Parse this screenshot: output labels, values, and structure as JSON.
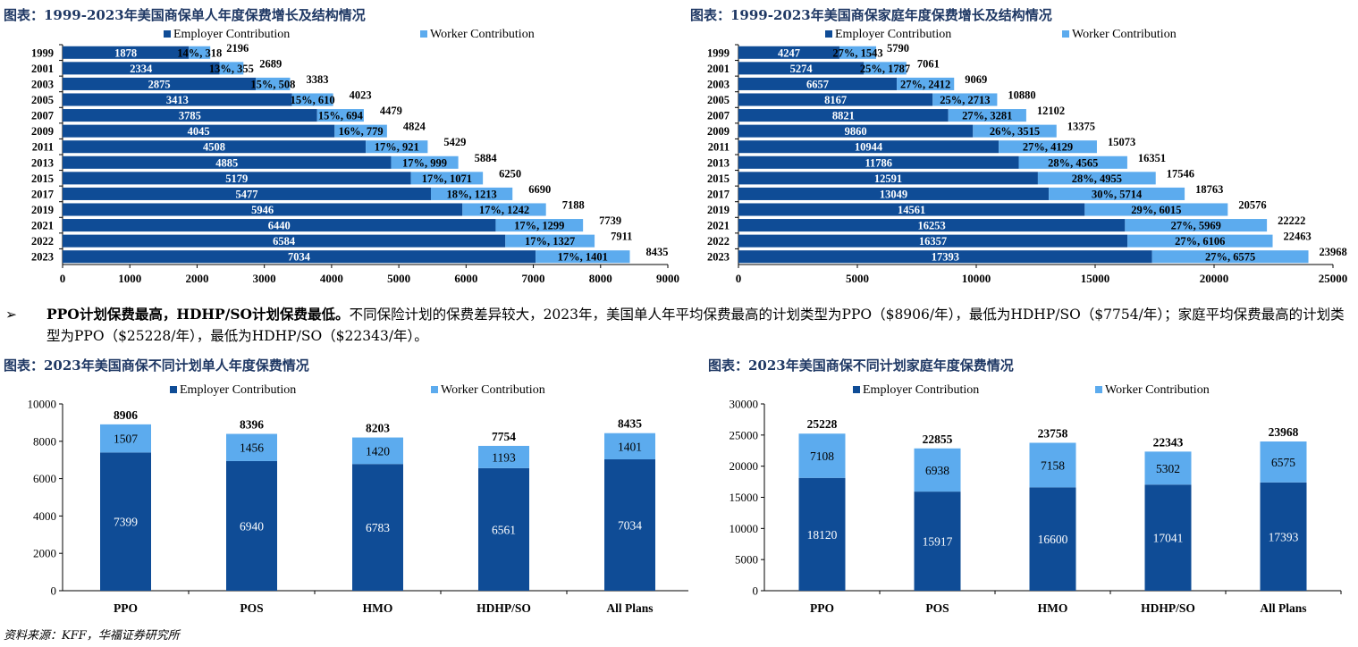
{
  "colors": {
    "employer": "#0f4c96",
    "worker": "#5cabee",
    "title": "#1f3864"
  },
  "legend": {
    "employer": "Employer Contribution",
    "worker": "Worker Contribution"
  },
  "paragraph": {
    "bullet": "➢",
    "bold": "PPO计划保费最高，HDHP/SO计划保费最低。",
    "text": "不同保险计划的保费差异较大，2023年，美国单人年平均保费最高的计划类型为PPO（$8906/年），最低为HDHP/SO（$7754/年）；家庭平均保费最高的计划类型为PPO（$25228/年），最低为HDHP/SO（$22343/年）。"
  },
  "source": "资料来源：KFF，华福证券研究所",
  "chart_data": [
    {
      "id": "single-trend",
      "type": "bar",
      "orientation": "horizontal",
      "stacked": true,
      "title": "图表：1999-2023年美国商保单人年度保费增长及结构情况",
      "categories": [
        "1999",
        "2001",
        "2003",
        "2005",
        "2007",
        "2009",
        "2011",
        "2013",
        "2015",
        "2017",
        "2019",
        "2021",
        "2022",
        "2023"
      ],
      "series": [
        {
          "name": "Employer Contribution",
          "values": [
            1878,
            2334,
            2875,
            3413,
            3785,
            4045,
            4508,
            4885,
            5179,
            5477,
            5946,
            6440,
            6584,
            7034
          ]
        },
        {
          "name": "Worker Contribution",
          "values": [
            318,
            355,
            508,
            610,
            694,
            779,
            921,
            999,
            1071,
            1213,
            1242,
            1299,
            1327,
            1401
          ]
        }
      ],
      "worker_labels": [
        "14%, 318",
        "13%, 355",
        "15%, 508",
        "15%, 610",
        "15%, 694",
        "16%, 779",
        "17%, 921",
        "17%, 999",
        "17%, 1071",
        "18%, 1213",
        "17%, 1242",
        "17%, 1299",
        "17%, 1327",
        "17%, 1401"
      ],
      "totals": [
        2196,
        2689,
        3383,
        4023,
        4479,
        4824,
        5429,
        5884,
        6250,
        6690,
        7188,
        7739,
        7911,
        8435
      ],
      "xlim": [
        0,
        9000
      ],
      "xticks": [
        0,
        1000,
        2000,
        3000,
        4000,
        5000,
        6000,
        7000,
        8000,
        9000
      ]
    },
    {
      "id": "family-trend",
      "type": "bar",
      "orientation": "horizontal",
      "stacked": true,
      "title": "图表：1999-2023年美国商保家庭年度保费增长及结构情况",
      "categories": [
        "1999",
        "2001",
        "2003",
        "2005",
        "2007",
        "2009",
        "2011",
        "2013",
        "2015",
        "2017",
        "2019",
        "2021",
        "2022",
        "2023"
      ],
      "series": [
        {
          "name": "Employer Contribution",
          "values": [
            4247,
            5274,
            6657,
            8167,
            8821,
            9860,
            10944,
            11786,
            12591,
            13049,
            14561,
            16253,
            16357,
            17393
          ]
        },
        {
          "name": "Worker Contribution",
          "values": [
            1543,
            1787,
            2412,
            2713,
            3281,
            3515,
            4129,
            4565,
            4955,
            5714,
            6015,
            5969,
            6106,
            6575
          ]
        }
      ],
      "worker_labels": [
        "27%, 1543",
        "25%, 1787",
        "27%, 2412",
        "25%, 2713",
        "27%, 3281",
        "26%, 3515",
        "27%, 4129",
        "28%, 4565",
        "28%, 4955",
        "30%, 5714",
        "29%, 6015",
        "27%, 5969",
        "27%, 6106",
        "27%, 6575"
      ],
      "totals": [
        5790,
        7061,
        9069,
        10880,
        12102,
        13375,
        15073,
        16351,
        17546,
        18763,
        20576,
        22222,
        22463,
        23968
      ],
      "xlim": [
        0,
        25000
      ],
      "xticks": [
        0,
        5000,
        10000,
        15000,
        20000,
        25000
      ]
    },
    {
      "id": "single-plans",
      "type": "bar",
      "orientation": "vertical",
      "stacked": true,
      "title": "图表：2023年美国商保不同计划单人年度保费情况",
      "categories": [
        "PPO",
        "POS",
        "HMO",
        "HDHP/SO",
        "All Plans"
      ],
      "series": [
        {
          "name": "Employer Contribution",
          "values": [
            7399,
            6940,
            6783,
            6561,
            7034
          ]
        },
        {
          "name": "Worker Contribution",
          "values": [
            1507,
            1456,
            1420,
            1193,
            1401
          ]
        }
      ],
      "totals": [
        8906,
        8396,
        8203,
        7754,
        8435
      ],
      "ylim": [
        0,
        10000
      ],
      "yticks": [
        0,
        2000,
        4000,
        6000,
        8000,
        10000
      ]
    },
    {
      "id": "family-plans",
      "type": "bar",
      "orientation": "vertical",
      "stacked": true,
      "title": "图表：2023年美国商保不同计划家庭年度保费情况",
      "categories": [
        "PPO",
        "POS",
        "HMO",
        "HDHP/SO",
        "All Plans"
      ],
      "series": [
        {
          "name": "Employer Contribution",
          "values": [
            18120,
            15917,
            16600,
            17041,
            17393
          ]
        },
        {
          "name": "Worker Contribution",
          "values": [
            7108,
            6938,
            7158,
            5302,
            6575
          ]
        }
      ],
      "totals": [
        25228,
        22855,
        23758,
        22343,
        23968
      ],
      "ylim": [
        0,
        30000
      ],
      "yticks": [
        0,
        5000,
        10000,
        15000,
        20000,
        25000,
        30000
      ]
    }
  ]
}
